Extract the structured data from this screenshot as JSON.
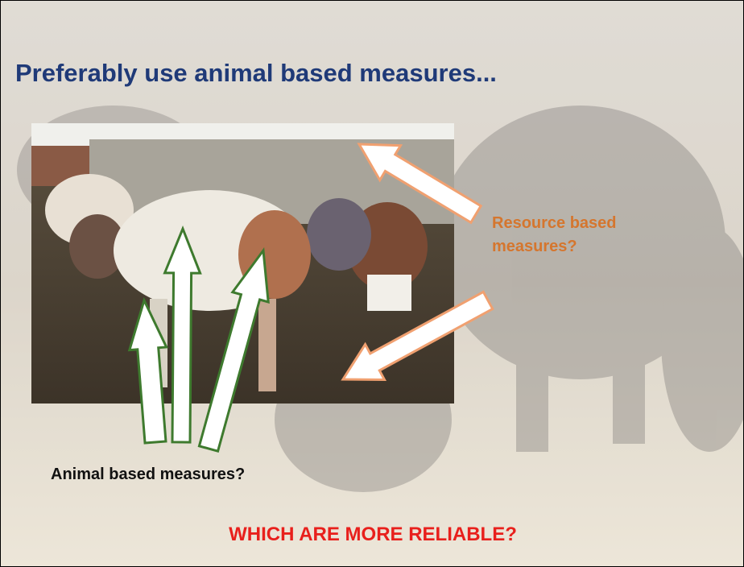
{
  "slide": {
    "title": "Preferably use animal based measures...",
    "labels": {
      "resource": "Resource based measures?",
      "animal": "Animal based measures?"
    },
    "question": "WHICH ARE MORE RELIABLE?"
  }
}
